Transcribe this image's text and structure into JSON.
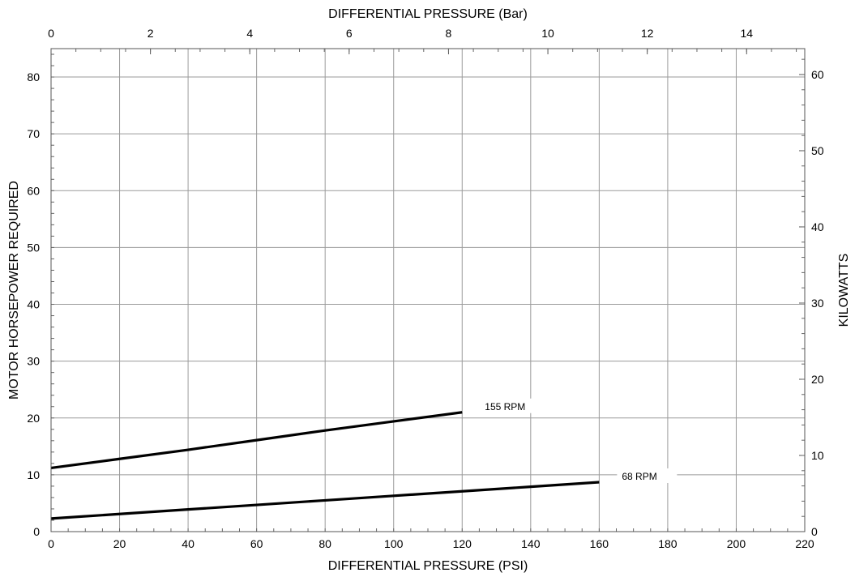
{
  "chart_data": {
    "type": "line",
    "title": "",
    "xlabel": "DIFFERENTIAL PRESSURE (PSI)",
    "ylabel": "MOTOR HORSEPOWER REQUIRED",
    "x2label": "DIFFERENTIAL PRESSURE (Bar)",
    "y2label": "KILOWATTS",
    "xlim": [
      0,
      220
    ],
    "ylim": [
      0,
      85
    ],
    "x2lim": [
      0,
      15.17
    ],
    "y2lim": [
      0,
      63.4
    ],
    "xticks": [
      0,
      20,
      40,
      60,
      80,
      100,
      120,
      140,
      160,
      180,
      200,
      220
    ],
    "yticks": [
      0,
      10,
      20,
      30,
      40,
      50,
      60,
      70,
      80
    ],
    "x2ticks": [
      0,
      2,
      4,
      6,
      8,
      10,
      12,
      14
    ],
    "y2ticks": [
      0,
      10,
      20,
      30,
      40,
      50,
      60
    ],
    "grid": true,
    "series": [
      {
        "name": "155 RPM",
        "x": [
          0,
          20,
          40,
          60,
          80,
          100,
          120
        ],
        "y": [
          11.2,
          12.8,
          14.4,
          16.1,
          17.8,
          19.4,
          21.0
        ]
      },
      {
        "name": "68 RPM",
        "x": [
          0,
          20,
          40,
          60,
          80,
          100,
          120,
          140,
          160
        ],
        "y": [
          2.3,
          3.1,
          3.9,
          4.7,
          5.5,
          6.3,
          7.1,
          7.9,
          8.7
        ]
      }
    ]
  }
}
